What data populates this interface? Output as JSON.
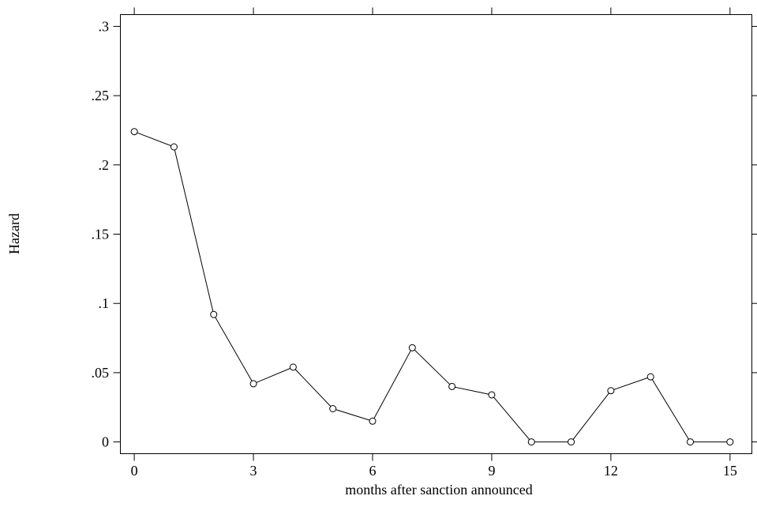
{
  "chart_data": {
    "type": "line",
    "title": "",
    "xlabel": "months after sanction announced",
    "ylabel": "Hazard",
    "x": [
      0,
      1,
      2,
      3,
      4,
      5,
      6,
      7,
      8,
      9,
      10,
      11,
      12,
      13,
      14,
      15
    ],
    "series": [
      {
        "values": [
          0.224,
          0.213,
          0.092,
          0.042,
          0.054,
          0.024,
          0.015,
          0.068,
          0.04,
          0.034,
          0.0,
          0.0,
          0.037,
          0.047,
          0.0,
          0.0
        ],
        "marker": "hollow-circle",
        "color": "#000000"
      }
    ],
    "xlim": [
      -0.35,
      15.55
    ],
    "ylim": [
      -0.0085,
      0.3085
    ],
    "xticks": [
      0,
      3,
      6,
      9,
      12,
      15
    ],
    "xtick_labels": [
      "0",
      "3",
      "6",
      "9",
      "12",
      "15"
    ],
    "yticks": [
      0,
      0.05,
      0.1,
      0.15,
      0.2,
      0.25,
      0.3
    ],
    "ytick_labels": [
      "0",
      ".05",
      ".1",
      ".15",
      ".2",
      ".25",
      ".3"
    ],
    "grid": false,
    "legend": "none",
    "mirror_ticks": true
  }
}
